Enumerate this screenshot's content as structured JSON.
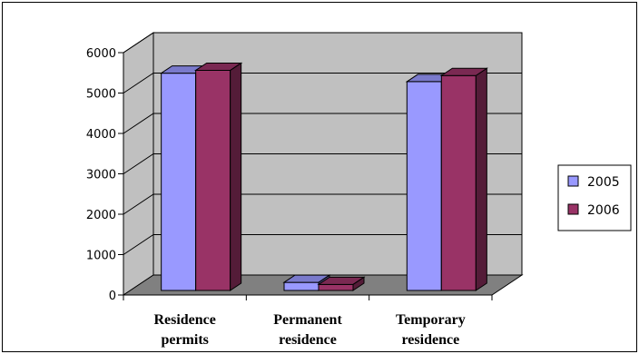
{
  "chart_data": {
    "type": "bar",
    "title": "",
    "xlabel": "",
    "ylabel": "",
    "categories": [
      [
        "Residence",
        "permits"
      ],
      [
        "Permanent",
        "residence"
      ],
      [
        "Temporary",
        "residence"
      ]
    ],
    "series": [
      {
        "name": "2005",
        "values": [
          5380,
          200,
          5170
        ],
        "color": "#9999ff"
      },
      {
        "name": "2006",
        "values": [
          5450,
          150,
          5320
        ],
        "color": "#993366"
      }
    ],
    "ylim": [
      0,
      6000
    ],
    "yticks": [
      "0",
      "1000",
      "2000",
      "3000",
      "4000",
      "5000",
      "6000"
    ],
    "three_d": true,
    "grid": true,
    "legend_position": "right"
  },
  "colors": {
    "wall": "#c0c0c0",
    "floor": "#808080",
    "grid": "#000000"
  }
}
